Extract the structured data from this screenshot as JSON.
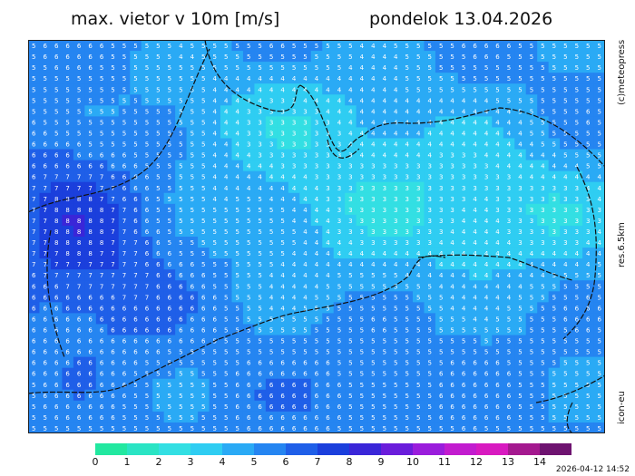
{
  "title": {
    "left": "max. vietor v 10m [m/s]",
    "right": "pondelok 13.04.2026"
  },
  "side_labels": {
    "top": "(c)meteopress",
    "middle": "res.6.5km",
    "bottom": "icon-eu"
  },
  "legend": {
    "ticks": [
      "0",
      "1",
      "2",
      "3",
      "4",
      "5",
      "6",
      "7",
      "8",
      "9",
      "10",
      "11",
      "12",
      "13",
      "14"
    ],
    "colors": [
      "#22e8a0",
      "#2ae4c4",
      "#33dfe3",
      "#2fcdf2",
      "#2aaaf5",
      "#2585f1",
      "#1f5fe8",
      "#1b3fdc",
      "#3a26d8",
      "#6a1ddb",
      "#9a1ddc",
      "#c21ccf",
      "#d81ac0",
      "#a4198f",
      "#6e1370"
    ]
  },
  "timestamp": "2026-04-12 14:52",
  "map": {
    "grid_cols": 51,
    "grid_rows": 36,
    "values_description_source": "approximate wind speed numbers visible on map grid"
  }
}
